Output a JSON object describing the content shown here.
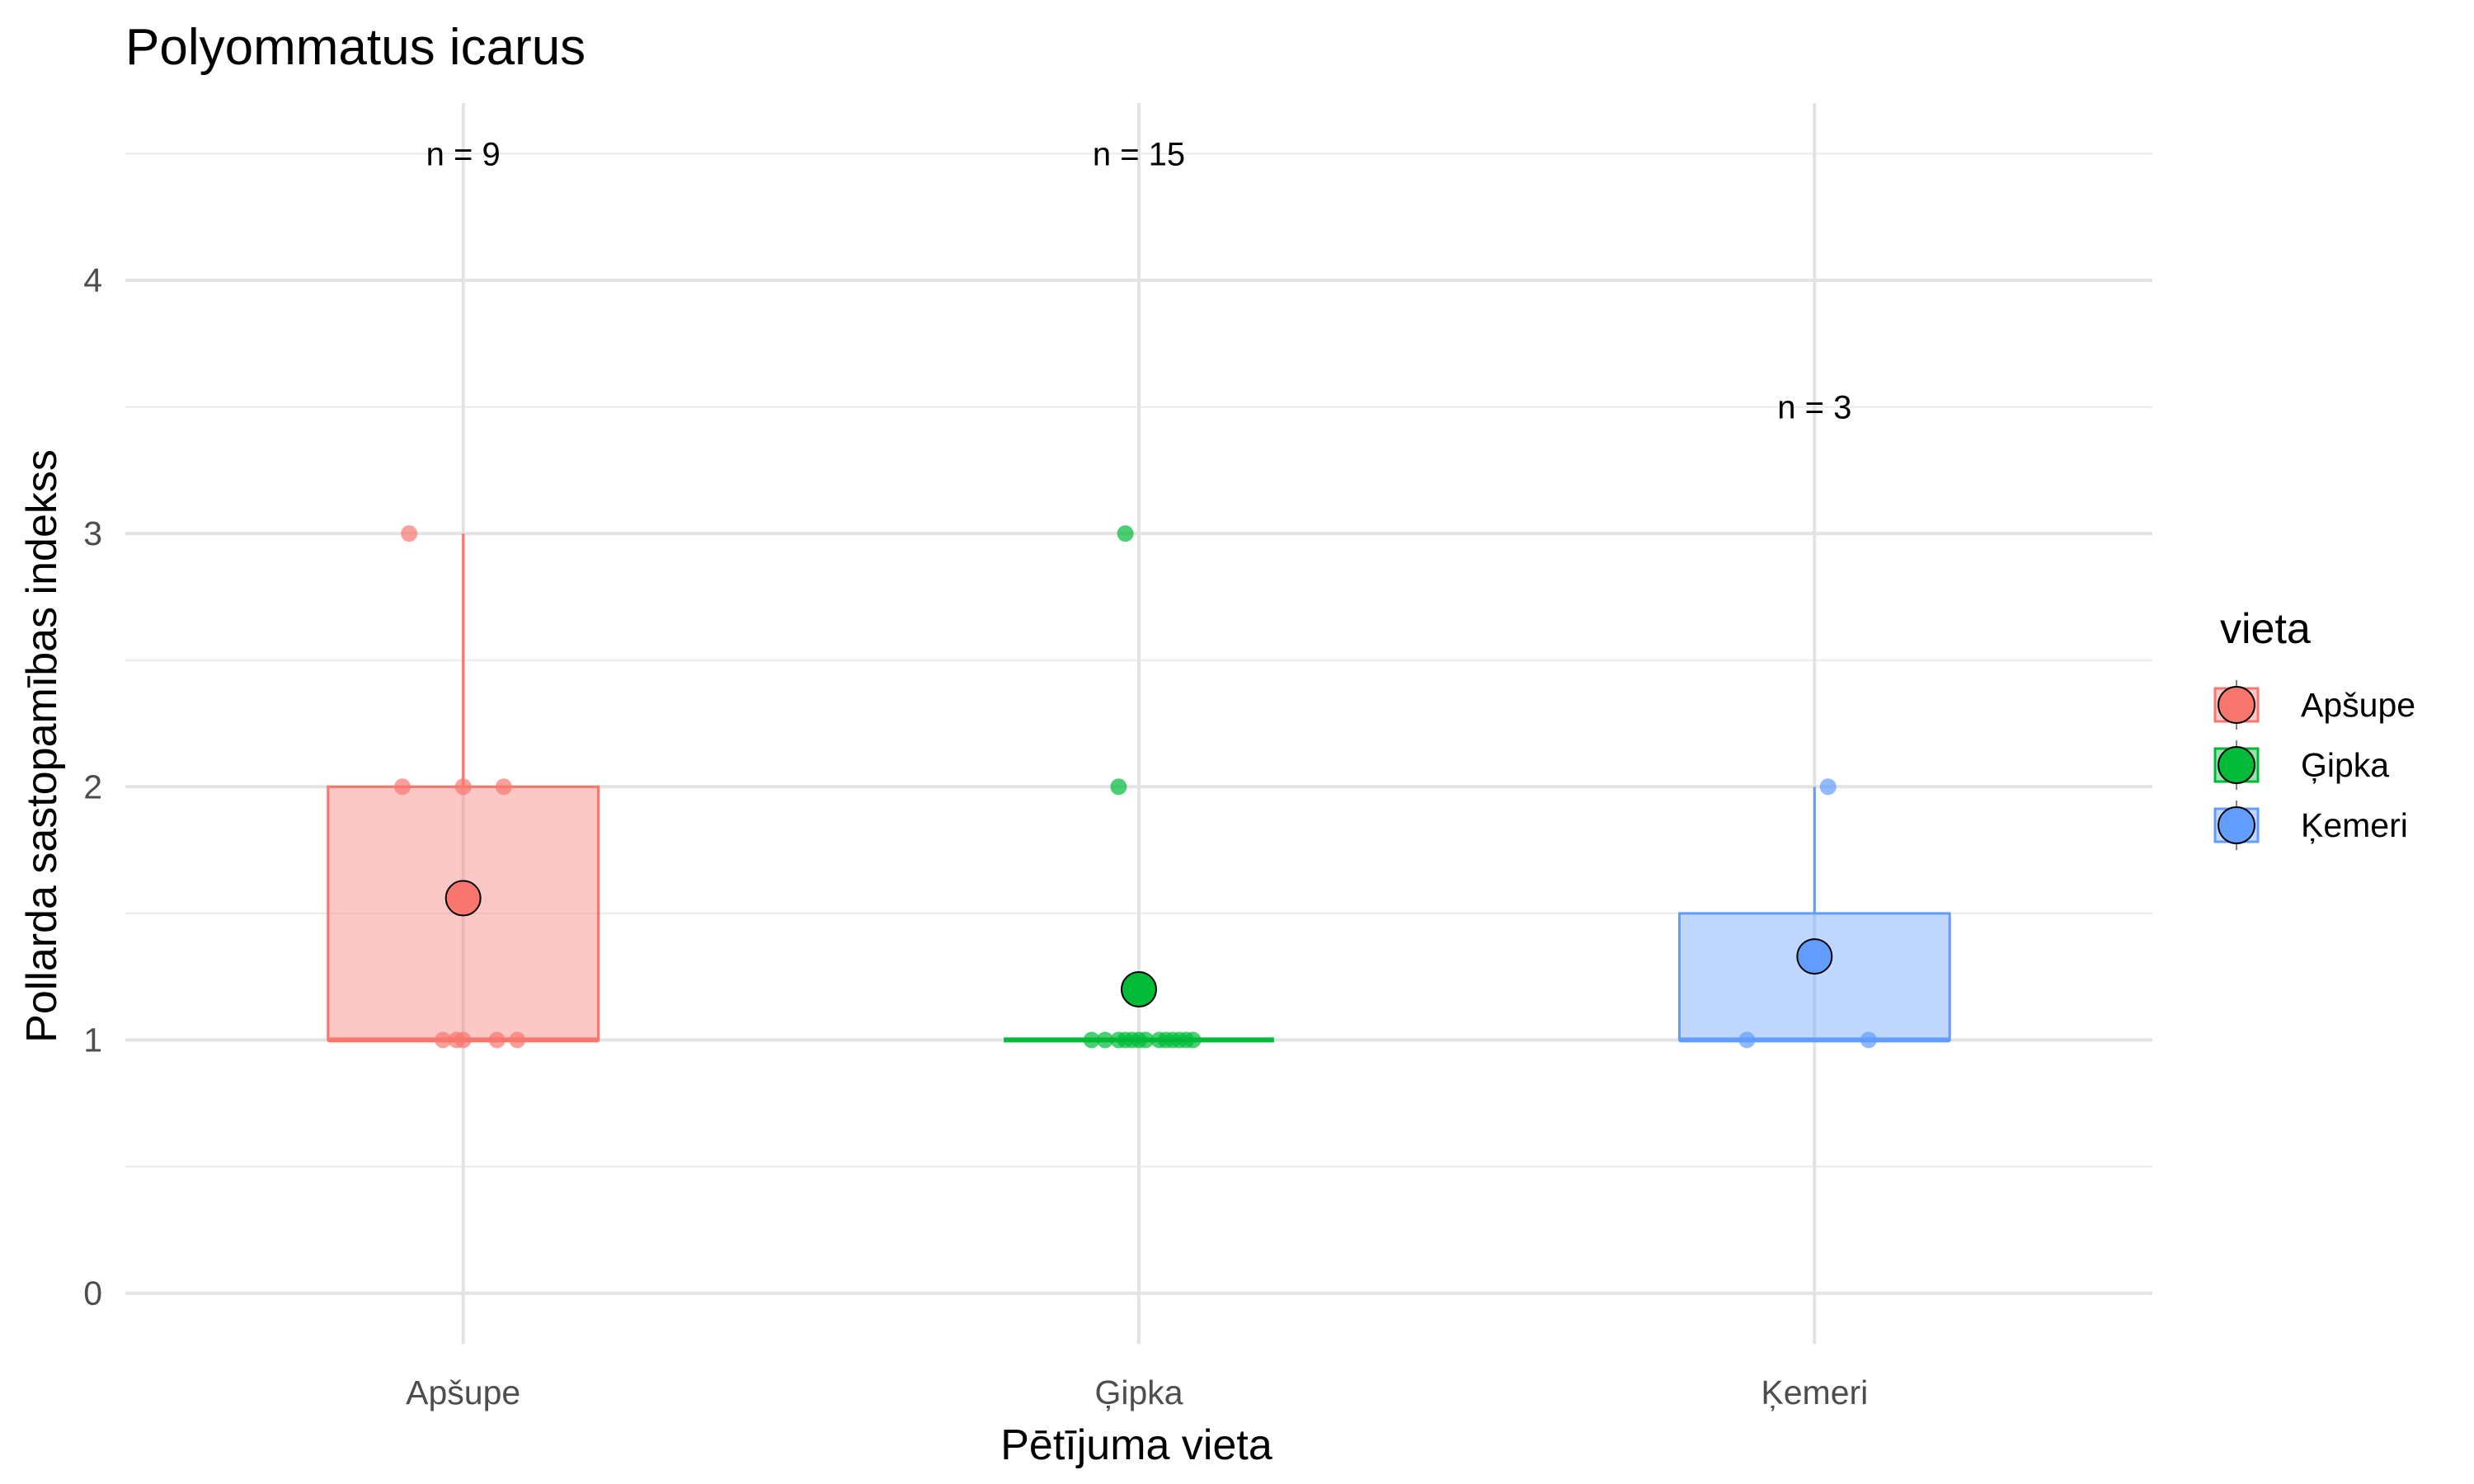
{
  "chart_data": {
    "type": "box",
    "title": "Polyommatus icarus",
    "xlabel": "Pētījuma vieta",
    "ylabel": "Pollarda sastopamības indekss",
    "ylim": [
      -0.2,
      4.7
    ],
    "yticks": [
      0,
      1,
      2,
      3,
      4
    ],
    "grid": true,
    "categories": [
      "Apšupe",
      "Ģipka",
      "Ķemeri"
    ],
    "colors": [
      "#F8766D",
      "#00BA38",
      "#619CFF"
    ],
    "legend": {
      "title": "vieta",
      "position": "right",
      "entries": [
        "Apšupe",
        "Ģipka",
        "Ķemeri"
      ]
    },
    "series": [
      {
        "name": "Apšupe",
        "n_label": "n = 9",
        "n_label_y": 4.5,
        "box": {
          "q1": 1,
          "median": 1,
          "q3": 2,
          "whisker_low": 1,
          "whisker_high": 3
        },
        "mean": 1.56,
        "points": [
          {
            "x": -0.08,
            "y": 3
          },
          {
            "x": -0.09,
            "y": 2
          },
          {
            "x": 0.0,
            "y": 2
          },
          {
            "x": 0.06,
            "y": 2
          },
          {
            "x": -0.03,
            "y": 1
          },
          {
            "x": -0.01,
            "y": 1
          },
          {
            "x": 0.0,
            "y": 1
          },
          {
            "x": 0.05,
            "y": 1
          },
          {
            "x": 0.08,
            "y": 1
          }
        ]
      },
      {
        "name": "Ģipka",
        "n_label": "n = 15",
        "n_label_y": 4.5,
        "box": {
          "q1": 1,
          "median": 1,
          "q3": 1,
          "whisker_low": 1,
          "whisker_high": 1
        },
        "mean": 1.2,
        "points": [
          {
            "x": -0.02,
            "y": 3
          },
          {
            "x": -0.03,
            "y": 2
          },
          {
            "x": -0.07,
            "y": 1
          },
          {
            "x": -0.05,
            "y": 1
          },
          {
            "x": -0.03,
            "y": 1
          },
          {
            "x": -0.02,
            "y": 1
          },
          {
            "x": -0.01,
            "y": 1
          },
          {
            "x": 0.0,
            "y": 1
          },
          {
            "x": 0.01,
            "y": 1
          },
          {
            "x": 0.03,
            "y": 1
          },
          {
            "x": 0.04,
            "y": 1
          },
          {
            "x": 0.05,
            "y": 1
          },
          {
            "x": 0.06,
            "y": 1
          },
          {
            "x": 0.07,
            "y": 1
          },
          {
            "x": 0.08,
            "y": 1
          }
        ]
      },
      {
        "name": "Ķemeri",
        "n_label": "n = 3",
        "n_label_y": 3.5,
        "box": {
          "q1": 1,
          "median": 1,
          "q3": 1.5,
          "whisker_low": 1,
          "whisker_high": 2
        },
        "mean": 1.33,
        "points": [
          {
            "x": 0.02,
            "y": 2
          },
          {
            "x": -0.1,
            "y": 1
          },
          {
            "x": 0.08,
            "y": 1
          }
        ]
      }
    ]
  }
}
